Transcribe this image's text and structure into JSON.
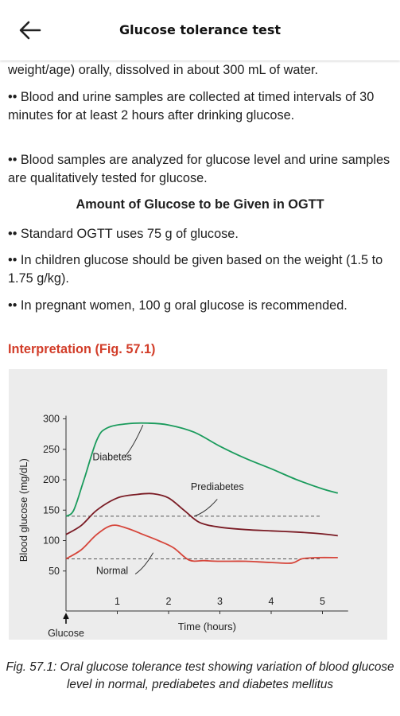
{
  "header": {
    "title": "Glucose tolerance test",
    "back_icon": "arrow-left-icon"
  },
  "paragraphs": {
    "p0": "weight/age) orally, dissolved in about 300 mL of water.",
    "p1": "•• Blood and urine samples are collected at timed intervals of 30 minutes for at least 2 hours after drinking glucose.",
    "p2": "•• Blood samples are analyzed for glucose level and urine samples are qualitatively tested for glucose.",
    "subheading": "Amount of Glucose to be Given in OGTT",
    "p3": "•• Standard OGTT uses 75 g of glucose.",
    "p4": "•• In children glucose should be given based on the weight (1.5 to 1.75 g/kg).",
    "p5": "•• In pregnant women, 100 g oral glucose is recommended.",
    "interpretation": "Interpretation (Fig. 57.1)"
  },
  "caption": "Fig. 57.1: Oral glucose tolerance test showing variation of blood glucose level in normal, prediabetes and diabetes mellitus",
  "colors": {
    "accent_red": "#d23d29",
    "diabetes": "#1a9b5c",
    "prediabetes": "#7a1b24",
    "normal": "#d6453a"
  },
  "chart_data": {
    "type": "line",
    "xlabel": "Time (hours)",
    "ylabel": "Blood glucose (mg/dL)",
    "xlim": [
      -0.9,
      5.5
    ],
    "ylim": [
      0,
      310
    ],
    "x_ticks": [
      "1",
      "2",
      "3",
      "4",
      "5"
    ],
    "y_ticks": [
      "50",
      "100",
      "150",
      "200",
      "250",
      "300"
    ],
    "x_origin_label": "Glucose\ngiven",
    "reference_lines": [
      140,
      70
    ],
    "series": [
      {
        "name": "Diabetes",
        "x": [
          0,
          0.15,
          0.35,
          0.6,
          0.8,
          1.2,
          1.6,
          2.0,
          2.5,
          3.0,
          3.5,
          4.0,
          4.5,
          5.0,
          5.3
        ],
        "y": [
          140,
          150,
          200,
          265,
          285,
          292,
          293,
          290,
          278,
          255,
          235,
          218,
          200,
          185,
          178
        ]
      },
      {
        "name": "Prediabetes",
        "x": [
          0,
          0.3,
          0.6,
          1.0,
          1.4,
          1.7,
          2.0,
          2.3,
          2.6,
          3.0,
          3.5,
          4.0,
          4.5,
          5.0,
          5.3
        ],
        "y": [
          110,
          125,
          150,
          170,
          176,
          177,
          170,
          150,
          130,
          122,
          118,
          116,
          114,
          111,
          108
        ]
      },
      {
        "name": "Normal",
        "x": [
          0,
          0.3,
          0.6,
          0.9,
          1.2,
          1.5,
          1.8,
          2.1,
          2.4,
          2.7,
          3.0,
          3.5,
          4.0,
          4.4,
          4.6,
          4.9,
          5.3
        ],
        "y": [
          70,
          85,
          110,
          125,
          120,
          110,
          100,
          88,
          68,
          67,
          66,
          66,
          64,
          63,
          70,
          72,
          72
        ]
      }
    ],
    "annotations": [
      "Diabetes",
      "Prediabetes",
      "Normal"
    ]
  }
}
